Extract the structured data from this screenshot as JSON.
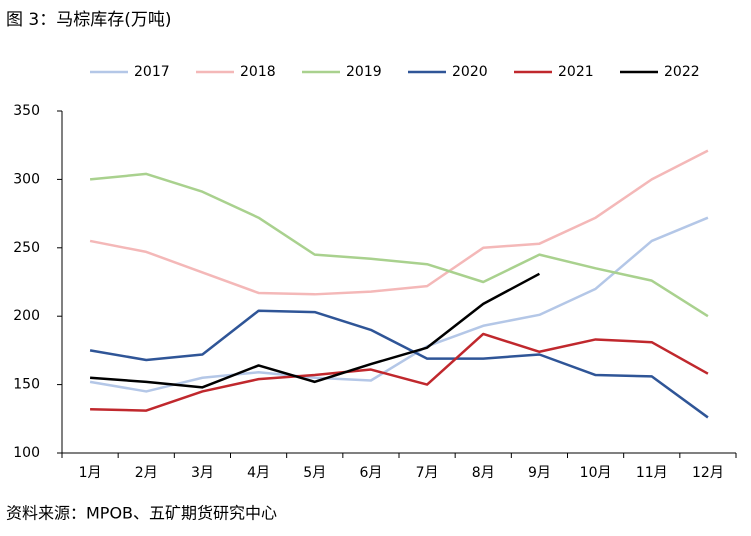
{
  "chart_data": {
    "type": "line",
    "title": "图 3：马棕库存(万吨)",
    "source": "资料来源：MPOB、五矿期货研究中心",
    "categories": [
      "1月",
      "2月",
      "3月",
      "4月",
      "5月",
      "6月",
      "7月",
      "8月",
      "9月",
      "10月",
      "11月",
      "12月"
    ],
    "series": [
      {
        "name": "2017",
        "color": "#b4c7e7",
        "values": [
          152,
          145,
          155,
          159,
          155,
          153,
          178,
          193,
          201,
          220,
          255,
          272
        ]
      },
      {
        "name": "2018",
        "color": "#f4b8b8",
        "values": [
          255,
          247,
          232,
          217,
          216,
          218,
          222,
          250,
          253,
          272,
          300,
          321
        ]
      },
      {
        "name": "2019",
        "color": "#a9d18e",
        "values": [
          300,
          304,
          291,
          272,
          245,
          242,
          238,
          225,
          245,
          235,
          226,
          200
        ]
      },
      {
        "name": "2020",
        "color": "#2f5597",
        "values": [
          175,
          168,
          172,
          204,
          203,
          190,
          169,
          169,
          172,
          157,
          156,
          126
        ]
      },
      {
        "name": "2021",
        "color": "#c0282d",
        "values": [
          132,
          131,
          145,
          154,
          157,
          161,
          150,
          187,
          174,
          183,
          181,
          158
        ]
      },
      {
        "name": "2022",
        "color": "#000000",
        "values": [
          155,
          152,
          148,
          164,
          152,
          165,
          177,
          209,
          231,
          null,
          null,
          null
        ]
      }
    ],
    "ylim": [
      100,
      350
    ],
    "yticks": [
      100,
      150,
      200,
      250,
      300,
      350
    ],
    "legend": "top"
  }
}
